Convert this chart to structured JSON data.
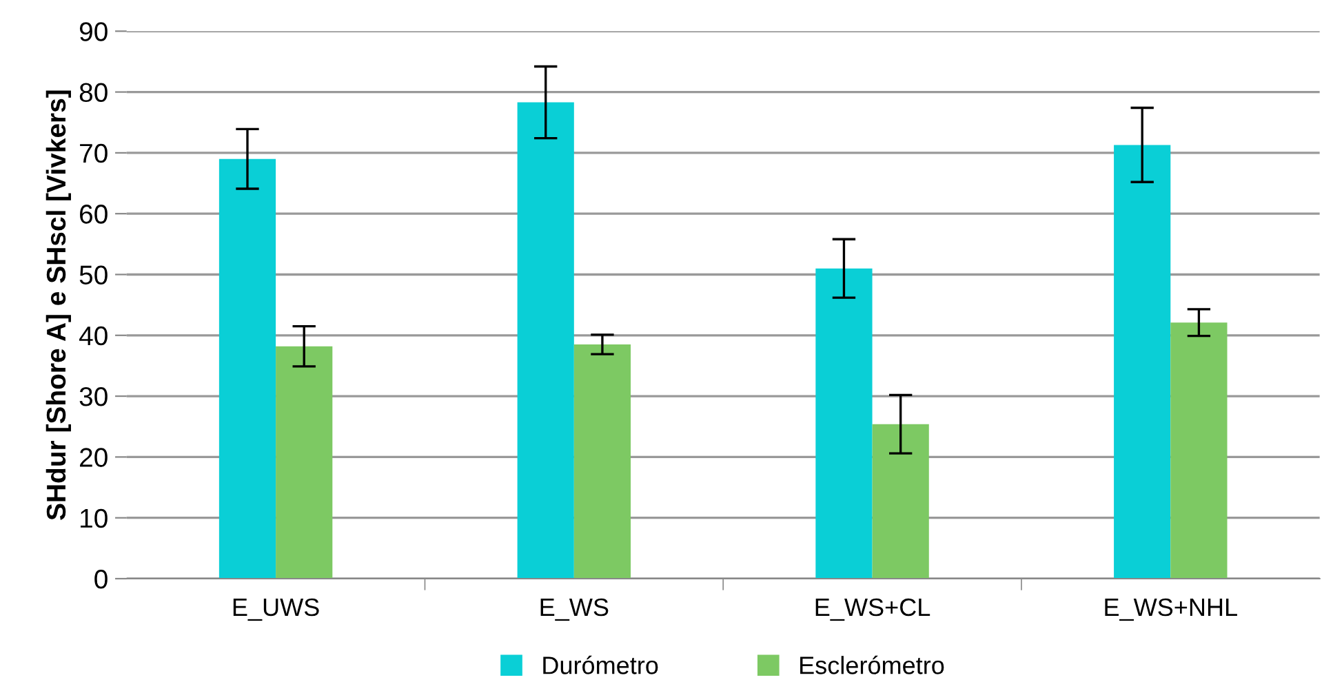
{
  "chart_data": {
    "type": "bar",
    "ylabel": "SHdur [Shore A] e SHscl [Vivkers]",
    "categories": [
      "E_UWS",
      "E_WS",
      "E_WS+CL",
      "E_WS+NHL"
    ],
    "series": [
      {
        "name": "Durómetro",
        "color": "#0acfd6",
        "values": [
          69.0,
          78.3,
          51.0,
          71.3
        ],
        "errors": [
          4.9,
          5.9,
          4.8,
          6.1
        ]
      },
      {
        "name": "Esclerómetro",
        "color": "#7dc963",
        "values": [
          38.2,
          38.5,
          25.4,
          42.1
        ],
        "errors": [
          3.3,
          1.6,
          4.8,
          2.2
        ]
      }
    ],
    "ylim": [
      0,
      90
    ],
    "yticks": [
      0,
      10,
      20,
      30,
      40,
      50,
      60,
      70,
      80,
      90
    ],
    "grid": "y",
    "legend": "bottom"
  }
}
